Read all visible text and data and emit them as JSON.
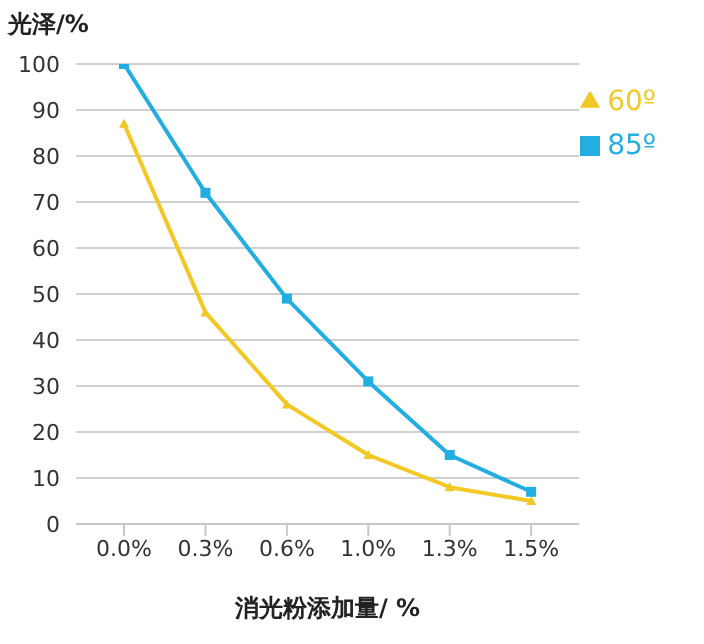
{
  "chart_data": {
    "type": "line",
    "ylabel": "光泽/%",
    "xlabel": "消光粉添加量/ %",
    "categories": [
      "0.0%",
      "0.3%",
      "0.6%",
      "1.0%",
      "1.3%",
      "1.5%"
    ],
    "series": [
      {
        "name": "60º",
        "color": "#f2c824",
        "marker": "triangle",
        "values": [
          87,
          46,
          26,
          15,
          8,
          5
        ]
      },
      {
        "name": "85º",
        "color": "#22aee0",
        "marker": "square",
        "values": [
          100,
          72,
          49,
          31,
          15,
          7
        ]
      }
    ],
    "ylim": [
      0,
      100
    ],
    "yticks": [
      0,
      10,
      20,
      30,
      40,
      50,
      60,
      70,
      80,
      90,
      100
    ],
    "grid": "y",
    "legend": "top right",
    "line_style": "solid"
  }
}
